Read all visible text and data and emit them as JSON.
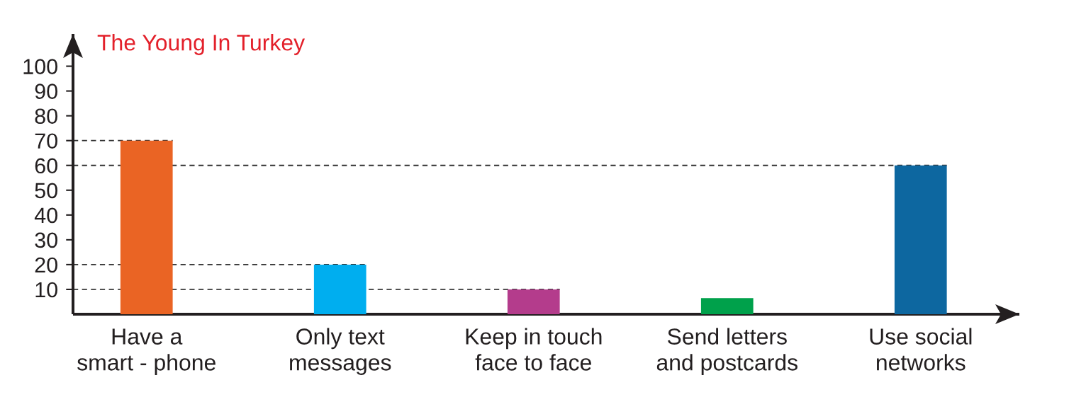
{
  "chart_data": {
    "type": "bar",
    "title": "The Young In Turkey",
    "categories": [
      "Have a\nsmart - phone",
      "Only text\nmessages",
      "Keep in touch\nface to face",
      "Send letters\nand postcards",
      "Use social\nnetworks"
    ],
    "values": [
      70,
      20,
      10,
      6.5,
      60
    ],
    "colors": [
      "#ea6424",
      "#00aeef",
      "#b43c8c",
      "#00a14b",
      "#0d67a0"
    ],
    "ylim": [
      0,
      113
    ],
    "yticks": [
      10,
      20,
      30,
      40,
      50,
      60,
      70,
      80,
      90,
      100
    ],
    "ref_lines": [
      {
        "axis": "y",
        "value": 70,
        "color": "#333333",
        "line_style": "dashed"
      },
      {
        "axis": "y",
        "value": 60,
        "color": "#333333",
        "line_style": "dashed"
      },
      {
        "axis": "y",
        "value": 20,
        "color": "#333333",
        "line_style": "dashed"
      },
      {
        "axis": "y",
        "value": 10,
        "color": "#333333",
        "line_style": "dashed"
      }
    ],
    "grid": false,
    "legend": false
  }
}
